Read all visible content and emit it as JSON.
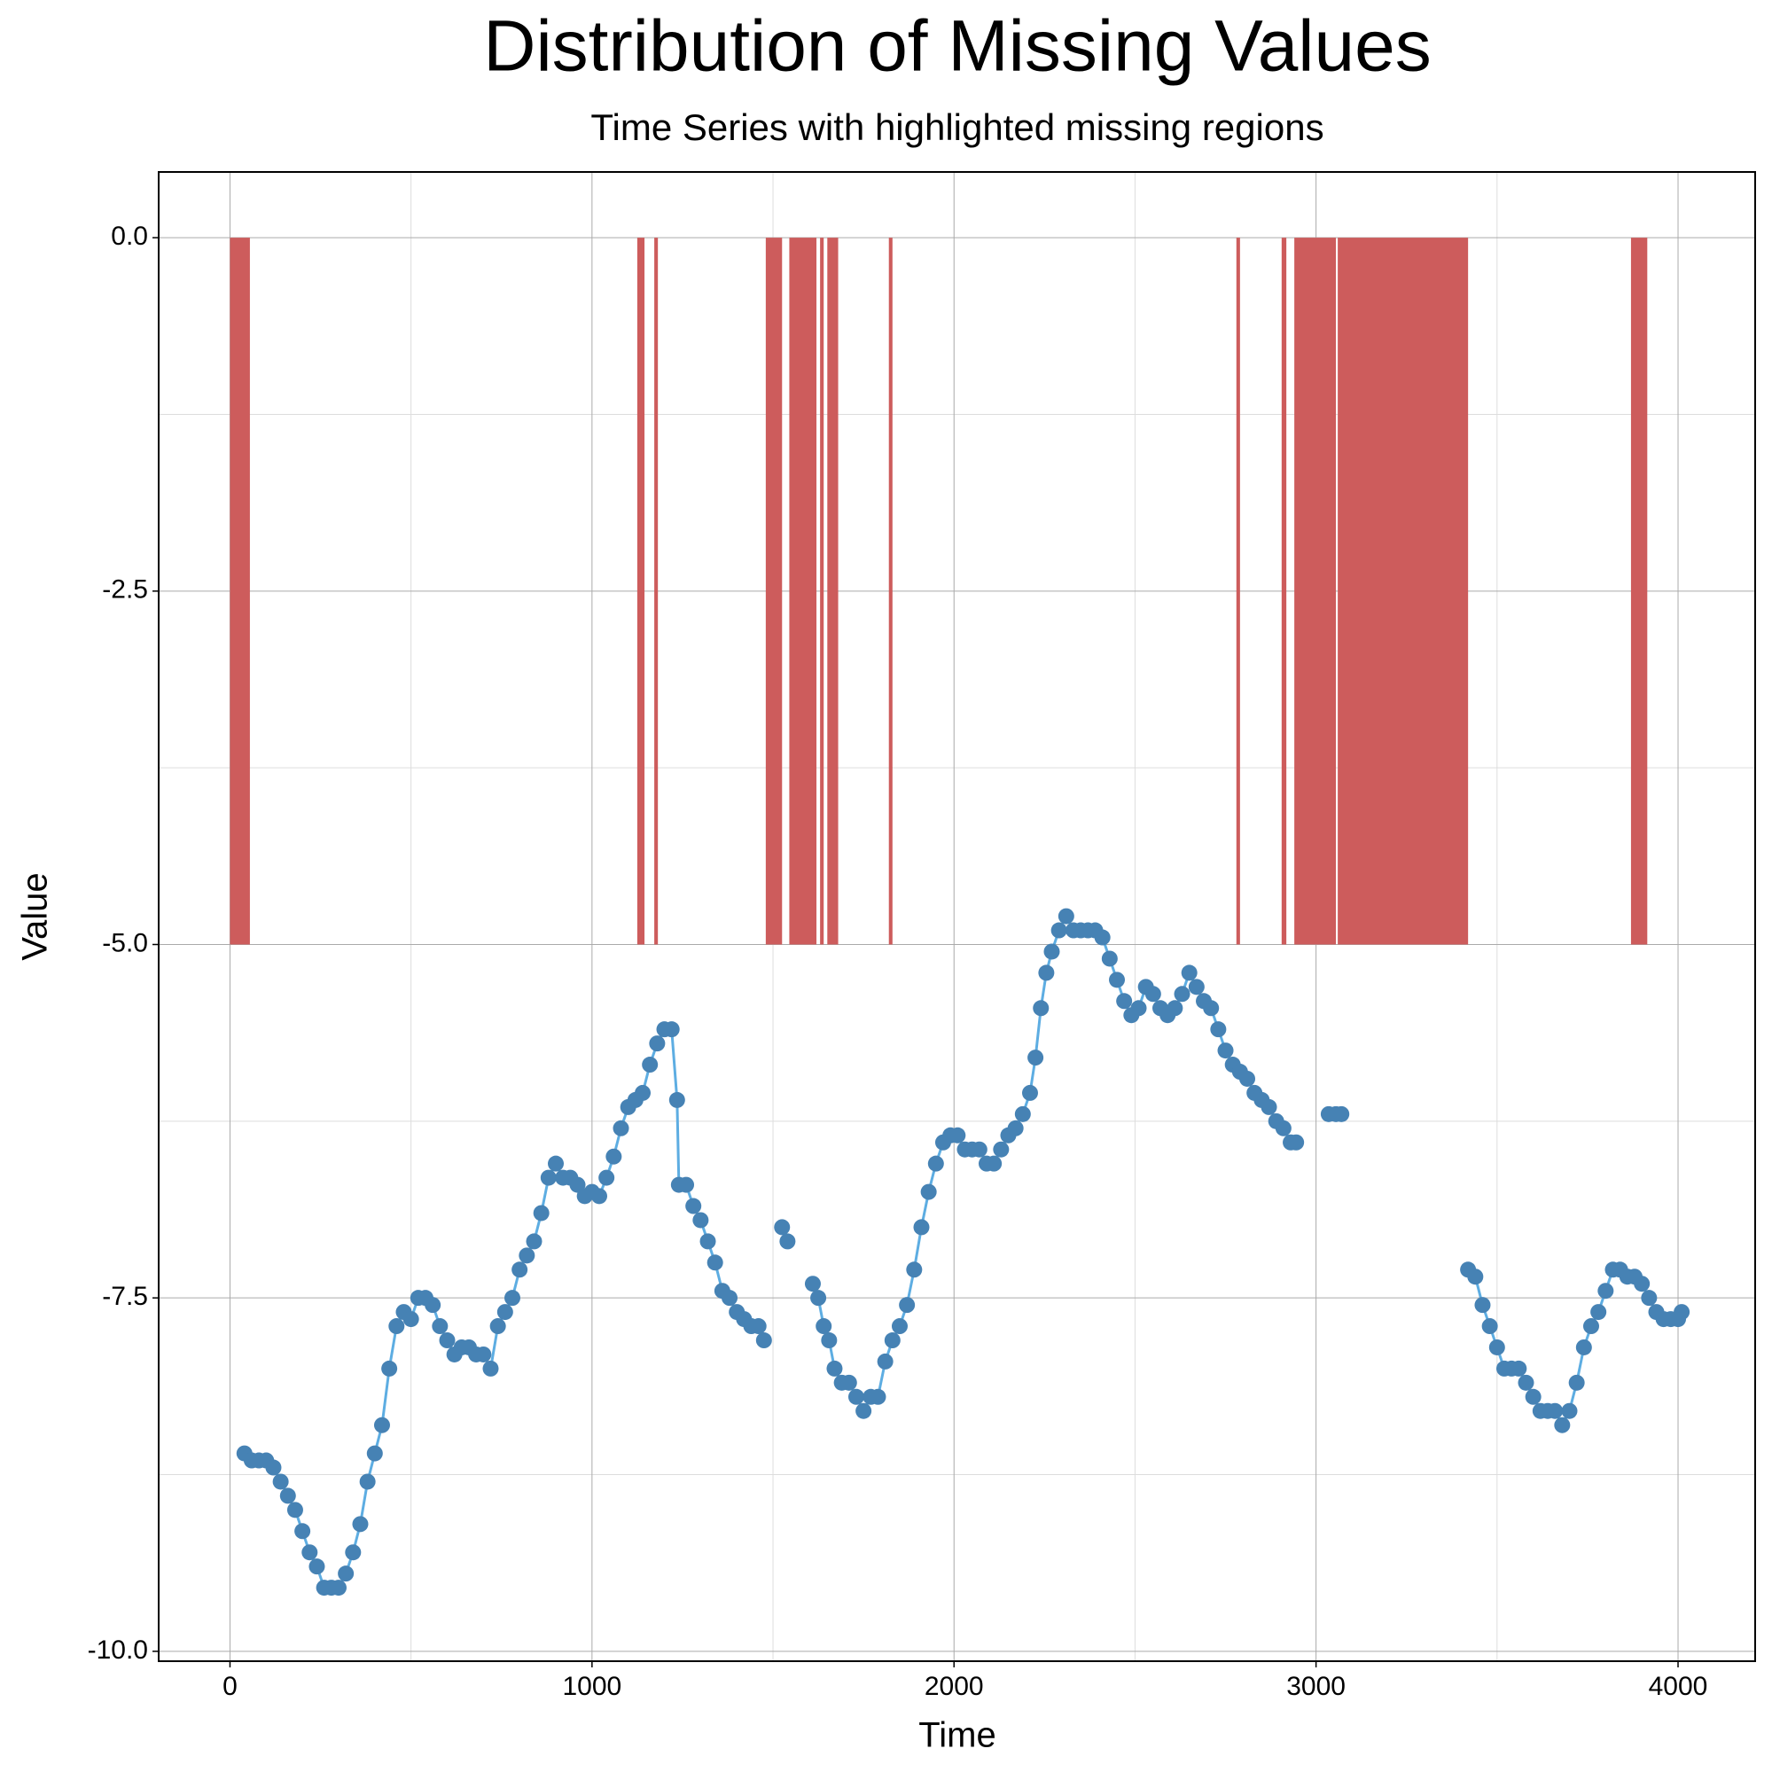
{
  "chart_data": {
    "type": "line",
    "title": "Distribution of Missing Values",
    "subtitle": "Time Series with highlighted missing regions",
    "x_label": "Time",
    "y_label": "Value",
    "xlim": [
      -197,
      4213
    ],
    "ylim": [
      -10.07,
      0.465
    ],
    "xticks": [
      0,
      1000,
      2000,
      3000,
      4000
    ],
    "yticks": [
      {
        "value": 0,
        "label": "0.0"
      },
      {
        "value": -2.5,
        "label": "-2.5"
      },
      {
        "value": -5,
        "label": "-5.0"
      },
      {
        "value": -7.5,
        "label": "-7.5"
      },
      {
        "value": -10,
        "label": "-10.0"
      }
    ],
    "x_minor_ticks": [
      500,
      1500,
      2500,
      3500
    ],
    "y_minor_ticks": [
      -1.25,
      -3.75,
      -6.25,
      -8.75
    ],
    "grid": true,
    "missing_regions": {
      "color": "#cd5c5c",
      "y": [
        0,
        -5
      ],
      "spans": [
        [
          0,
          55
        ],
        [
          1125,
          1145
        ],
        [
          1172,
          1182
        ],
        [
          1480,
          1525
        ],
        [
          1545,
          1620
        ],
        [
          1630,
          1640
        ],
        [
          1650,
          1680
        ],
        [
          1820,
          1830
        ],
        [
          2780,
          2790
        ],
        [
          2905,
          2918
        ],
        [
          2940,
          3055
        ],
        [
          3060,
          3420
        ],
        [
          3870,
          3915
        ]
      ]
    },
    "series": [
      {
        "line_color": "#5dade2",
        "color": "#4682b4",
        "x": [
          40,
          60,
          80,
          100,
          120,
          140,
          160,
          180,
          200,
          220,
          240,
          260,
          280,
          300,
          320,
          340,
          360,
          380,
          400,
          420,
          440,
          460,
          480,
          500,
          520,
          540,
          560,
          580,
          600,
          620,
          640,
          660,
          680,
          700,
          720,
          740,
          760,
          780,
          800,
          820,
          840,
          860,
          880,
          900,
          920,
          940,
          960,
          980,
          1000,
          1020,
          1040,
          1060,
          1080,
          1100,
          1120,
          1140,
          1160,
          1180,
          1200,
          1220,
          1235,
          1240,
          1260,
          1280,
          1300,
          1320,
          1340,
          1360,
          1380,
          1400,
          1420,
          1440,
          1460,
          1475,
          1500,
          1525,
          1540,
          1575,
          1610,
          1625,
          1640,
          1655,
          1670,
          1690,
          1710,
          1730,
          1750,
          1770,
          1790,
          1810,
          1830,
          1850,
          1870,
          1890,
          1910,
          1930,
          1950,
          1970,
          1990,
          2010,
          2030,
          2050,
          2070,
          2090,
          2110,
          2130,
          2150,
          2170,
          2190,
          2210,
          2225,
          2240,
          2255,
          2270,
          2290,
          2310,
          2330,
          2350,
          2370,
          2390,
          2410,
          2430,
          2450,
          2470,
          2490,
          2510,
          2530,
          2550,
          2570,
          2590,
          2610,
          2630,
          2650,
          2670,
          2690,
          2710,
          2730,
          2750,
          2770,
          2790,
          2810,
          2830,
          2850,
          2870,
          2890,
          2910,
          2930,
          2945,
          2990,
          3035,
          3055,
          3070,
          3250,
          3420,
          3440,
          3460,
          3480,
          3500,
          3520,
          3540,
          3560,
          3580,
          3600,
          3620,
          3640,
          3660,
          3680,
          3700,
          3720,
          3740,
          3760,
          3780,
          3800,
          3820,
          3840,
          3860,
          3880,
          3900,
          3920,
          3940,
          3960,
          3980,
          4000,
          4010
        ],
        "values": [
          -8.6,
          -8.65,
          -8.65,
          -8.65,
          -8.7,
          -8.8,
          -8.9,
          -9.0,
          -9.15,
          -9.3,
          -9.4,
          -9.55,
          -9.55,
          -9.55,
          -9.45,
          -9.3,
          -9.1,
          -8.8,
          -8.6,
          -8.4,
          -8.0,
          -7.7,
          -7.6,
          -7.65,
          -7.5,
          -7.5,
          -7.55,
          -7.7,
          -7.8,
          -7.9,
          -7.85,
          -7.85,
          -7.9,
          -7.9,
          -8.0,
          -7.7,
          -7.6,
          -7.5,
          -7.3,
          -7.2,
          -7.1,
          -6.9,
          -6.65,
          -6.55,
          -6.65,
          -6.65,
          -6.7,
          -6.78,
          -6.75,
          -6.78,
          -6.65,
          -6.5,
          -6.3,
          -6.15,
          -6.1,
          -6.05,
          -5.85,
          -5.7,
          -5.6,
          -5.6,
          -6.1,
          -6.7,
          -6.7,
          -6.85,
          -6.95,
          -7.1,
          -7.25,
          -7.45,
          -7.5,
          -7.6,
          -7.65,
          -7.7,
          -7.7,
          -7.8,
          null,
          -7.0,
          -7.1,
          null,
          -7.4,
          -7.5,
          -7.7,
          -7.8,
          -8.0,
          -8.1,
          -8.1,
          -8.2,
          -8.3,
          -8.2,
          -8.2,
          -7.95,
          -7.8,
          -7.7,
          -7.55,
          -7.3,
          -7.0,
          -6.75,
          -6.55,
          -6.4,
          -6.35,
          -6.35,
          -6.45,
          -6.45,
          -6.45,
          -6.55,
          -6.55,
          -6.45,
          -6.35,
          -6.3,
          -6.2,
          -6.05,
          -5.8,
          -5.45,
          -5.2,
          -5.05,
          -4.9,
          -4.8,
          -4.9,
          -4.9,
          -4.9,
          -4.9,
          -4.95,
          -5.1,
          -5.25,
          -5.4,
          -5.5,
          -5.45,
          -5.3,
          -5.35,
          -5.45,
          -5.5,
          -5.45,
          -5.35,
          -5.2,
          -5.3,
          -5.4,
          -5.45,
          -5.6,
          -5.75,
          -5.85,
          -5.9,
          -5.95,
          -6.05,
          -6.1,
          -6.15,
          -6.25,
          -6.3,
          -6.4,
          -6.4,
          null,
          -6.2,
          -6.2,
          -6.2,
          null,
          -7.3,
          -7.35,
          -7.55,
          -7.7,
          -7.85,
          -8.0,
          -8.0,
          -8.0,
          -8.1,
          -8.2,
          -8.3,
          -8.3,
          -8.3,
          -8.4,
          -8.3,
          -8.1,
          -7.85,
          -7.7,
          -7.6,
          -7.45,
          -7.3,
          -7.3,
          -7.35,
          -7.35,
          -7.4,
          -7.5,
          -7.6,
          -7.65,
          -7.65,
          -7.65,
          -7.6
        ]
      }
    ]
  }
}
